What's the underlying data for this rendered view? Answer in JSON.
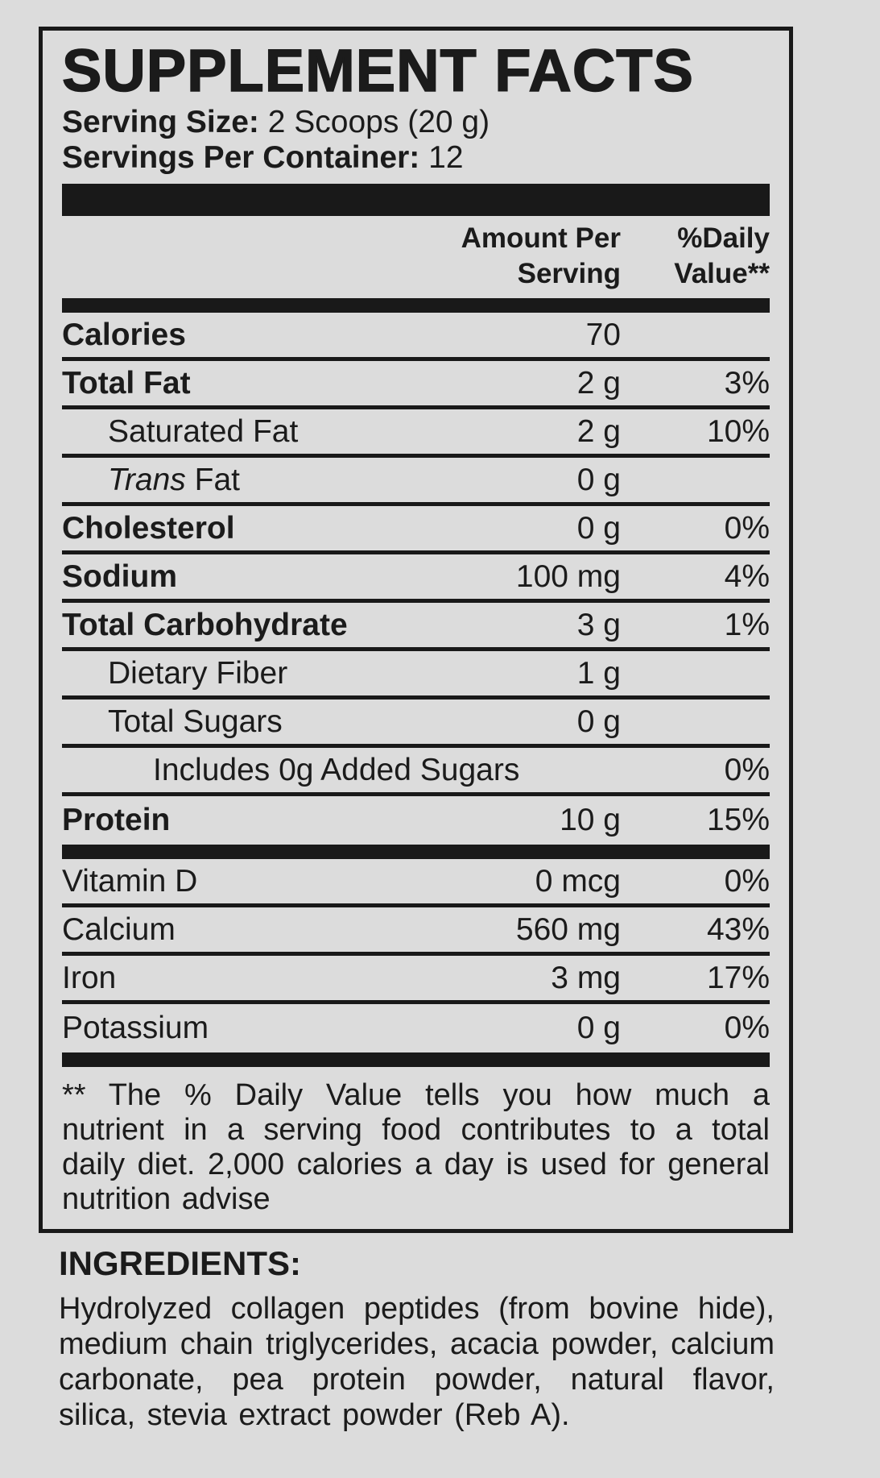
{
  "colors": {
    "background": "#dcdcdc",
    "ink": "#1b1b1b",
    "bar": "#191919"
  },
  "label": {
    "title": "SUPPLEMENT FACTS",
    "serving_size_label": "Serving Size:",
    "serving_size_value": "2 Scoops (20 g)",
    "servings_per_container_label": "Servings Per Container:",
    "servings_per_container_value": "12",
    "col_amount_header": "Amount Per Serving",
    "col_dv_header": "%Daily Value**",
    "main_rows": [
      {
        "name": "Calories",
        "amount": "70",
        "dv": "",
        "bold": true,
        "indent": 0
      },
      {
        "name": "Total Fat",
        "amount": "2 g",
        "dv": "3%",
        "bold": true,
        "indent": 0
      },
      {
        "name": "Saturated Fat",
        "amount": "2 g",
        "dv": "10%",
        "bold": false,
        "indent": 1
      },
      {
        "name_italic": "Trans",
        "name": " Fat",
        "amount": "0 g",
        "dv": "",
        "bold": false,
        "indent": 1
      },
      {
        "name": "Cholesterol",
        "amount": "0 g",
        "dv": "0%",
        "bold": true,
        "indent": 0
      },
      {
        "name": "Sodium",
        "amount": "100 mg",
        "dv": "4%",
        "bold": true,
        "indent": 0
      },
      {
        "name": "Total Carbohydrate",
        "amount": "3 g",
        "dv": "1%",
        "bold": true,
        "indent": 0
      },
      {
        "name": "Dietary Fiber",
        "amount": "1 g",
        "dv": "",
        "bold": false,
        "indent": 1
      },
      {
        "name": "Total Sugars",
        "amount": "0 g",
        "dv": "",
        "bold": false,
        "indent": 1
      },
      {
        "name": "Includes 0g Added Sugars",
        "amount": "",
        "dv": "0%",
        "bold": false,
        "indent": 2
      },
      {
        "name": "Protein",
        "amount": "10 g",
        "dv": "15%",
        "bold": true,
        "indent": 0
      }
    ],
    "mineral_rows": [
      {
        "name": "Vitamin D",
        "amount": "0 mcg",
        "dv": "0%",
        "bold": false,
        "indent": 0
      },
      {
        "name": "Calcium",
        "amount": "560 mg",
        "dv": "43%",
        "bold": false,
        "indent": 0
      },
      {
        "name": "Iron",
        "amount": "3 mg",
        "dv": "17%",
        "bold": false,
        "indent": 0
      },
      {
        "name": "Potassium",
        "amount": "0 g",
        "dv": "0%",
        "bold": false,
        "indent": 0
      }
    ],
    "footnote": "** The % Daily Value tells you how much a nutrient in a serving food contributes to a total daily diet. 2,000 calories a day is used for general nutrition advise"
  },
  "ingredients": {
    "header": "INGREDIENTS:",
    "text": "Hydrolyzed collagen peptides (from bovine hide), medium chain triglycerides, acacia powder, calcium carbonate, pea protein powder, natural flavor, silica, stevia extract powder (Reb A)."
  }
}
